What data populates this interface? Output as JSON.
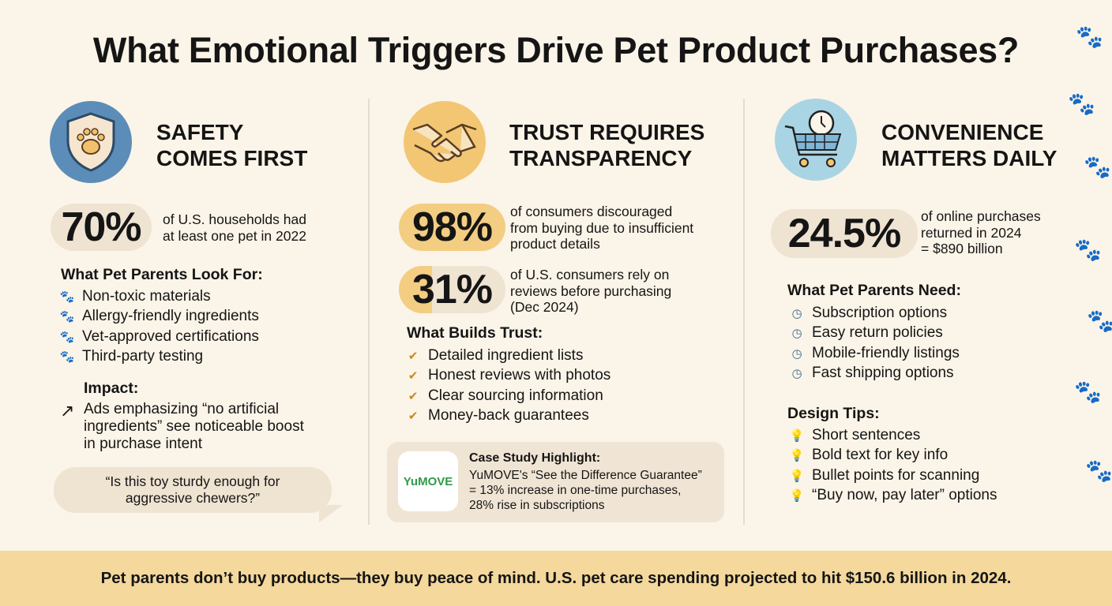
{
  "title": "What Emotional Triggers Drive Pet Product Purchases?",
  "colors": {
    "background": "#fbf4e8",
    "safety": "#5b8db8",
    "trust": "#f2c673",
    "convenience": "#a9d4e4",
    "footer": "#f4d89c",
    "pill": "#efe3d2"
  },
  "safety": {
    "icon": "shield-paw-icon",
    "title_line1": "SAFETY",
    "title_line2": "COMES FIRST",
    "stat": "70%",
    "stat_desc_line1": "of U.S. households had",
    "stat_desc_line2": "at least one pet in 2022",
    "subheading": "What Pet Parents Look For:",
    "items": [
      "Non-toxic materials",
      "Allergy-friendly ingredients",
      "Vet-approved certifications",
      "Third-party testing"
    ],
    "impact_heading": "Impact:",
    "impact_lines": [
      "Ads emphasizing “no artificial",
      "ingredients” see noticeable boost",
      "in purchase intent"
    ],
    "quote_line1": "“Is this toy sturdy enough for",
    "quote_line2": "aggressive chewers?”"
  },
  "trust": {
    "icon": "handshake-icon",
    "title_line1": "TRUST REQUIRES",
    "title_line2": "TRANSPARENCY",
    "stat1": "98%",
    "stat1_lines": [
      "of consumers discouraged",
      "from buying due to insufficient",
      "product details"
    ],
    "stat2": "31%",
    "stat2_fill": 0.31,
    "stat2_lines": [
      "of U.S. consumers rely on",
      "reviews before purchasing",
      "(Dec 2024)"
    ],
    "subheading": "What Builds Trust:",
    "items": [
      "Detailed ingredient lists",
      "Honest reviews with photos",
      "Clear sourcing information",
      "Money-back guarantees"
    ],
    "case_logo": "YuMOVE",
    "case_heading": "Case Study Highlight:",
    "case_lines": [
      "YuMOVE's “See the Difference Guarantee”",
      "= 13% increase in one-time purchases,",
      "28% rise in subscriptions"
    ]
  },
  "convenience": {
    "icon": "cart-clock-icon",
    "title_line1": "CONVENIENCE",
    "title_line2": "MATTERS DAILY",
    "stat": "24.5%",
    "stat_lines": [
      "of online purchases",
      "returned in 2024",
      "= $890 billion"
    ],
    "subheading": "What Pet Parents Need:",
    "items": [
      "Subscription options",
      "Easy return policies",
      "Mobile-friendly listings",
      "Fast shipping options"
    ],
    "tips_heading": "Design Tips:",
    "tips": [
      "Short sentences",
      "Bold text for key info",
      "Bullet points for scanning",
      "“Buy now, pay later” options"
    ]
  },
  "footer": "Pet parents don’t buy products—they buy peace of mind. U.S. pet care spending projected to hit $150.6 billion in 2024."
}
